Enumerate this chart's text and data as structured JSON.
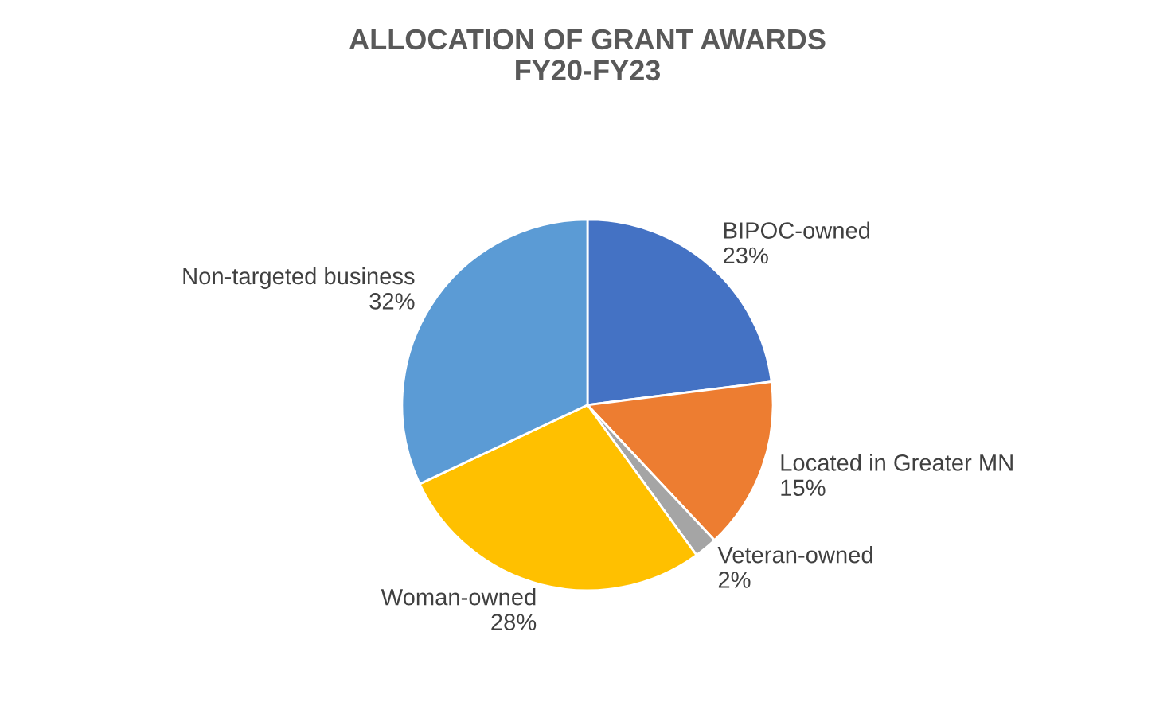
{
  "chart_data": {
    "type": "pie",
    "title": "ALLOCATION OF GRANT AWARDS\nFY20-FY23",
    "categories": [
      "BIPOC-owned",
      "Located in Greater MN",
      "Veteran-owned",
      "Woman-owned",
      "Non-targeted business"
    ],
    "values": [
      23,
      15,
      2,
      28,
      32
    ],
    "value_labels": [
      "23%",
      "15%",
      "2%",
      "28%",
      "32%"
    ],
    "colors": [
      "#4472c4",
      "#ed7d31",
      "#a5a5a5",
      "#ffc000",
      "#5b9bd5"
    ],
    "legend": false
  }
}
